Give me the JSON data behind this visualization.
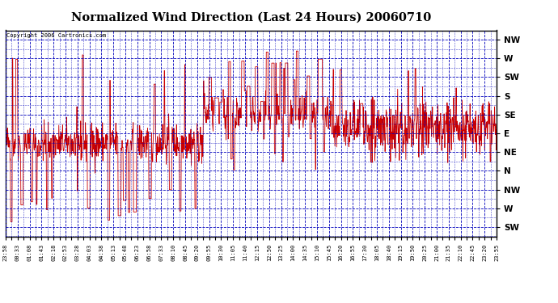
{
  "title": "Normalized Wind Direction (Last 24 Hours) 20060710",
  "copyright": "Copyright 2006 Cartronics.com",
  "line_color": "#cc0000",
  "grid_color": "#0000bb",
  "title_fontsize": 11,
  "ytick_labels": [
    "NW",
    "W",
    "SW",
    "S",
    "SE",
    "E",
    "NE",
    "N",
    "NW",
    "W",
    "SW"
  ],
  "ytick_values": [
    10,
    9,
    8,
    7,
    6,
    5,
    4,
    3,
    2,
    1,
    0
  ],
  "ylim": [
    -0.5,
    10.5
  ],
  "xtick_labels": [
    "23:58",
    "00:33",
    "01:08",
    "01:43",
    "02:18",
    "02:53",
    "03:28",
    "04:03",
    "04:38",
    "05:13",
    "05:48",
    "06:23",
    "06:58",
    "07:33",
    "08:10",
    "08:45",
    "09:20",
    "09:55",
    "10:30",
    "11:05",
    "11:40",
    "12:15",
    "12:50",
    "13:25",
    "14:00",
    "14:35",
    "15:10",
    "15:45",
    "16:20",
    "16:55",
    "17:30",
    "18:05",
    "18:40",
    "19:15",
    "19:50",
    "20:25",
    "21:00",
    "21:35",
    "22:10",
    "22:45",
    "23:20",
    "23:55"
  ],
  "num_points": 1440,
  "seed": 42
}
